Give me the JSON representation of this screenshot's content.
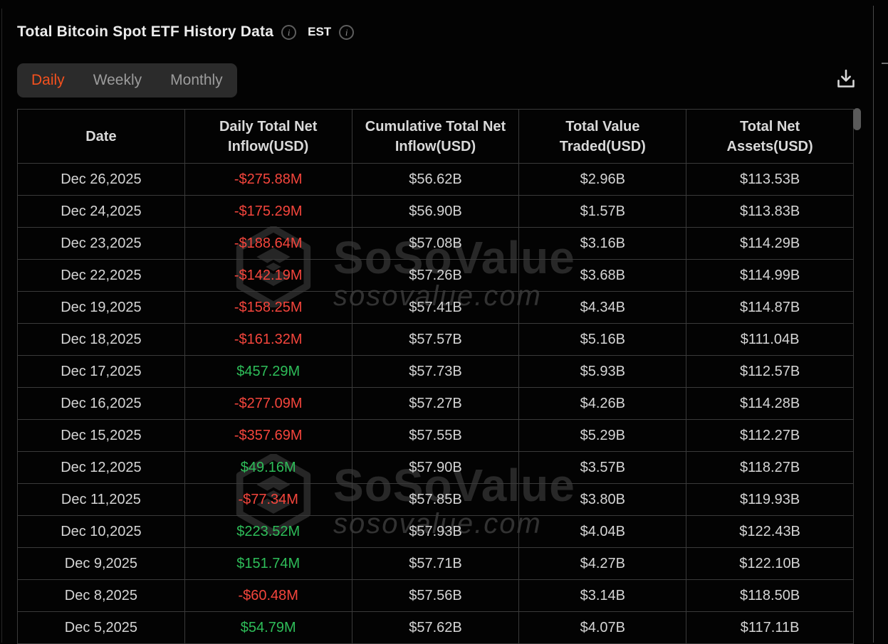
{
  "header": {
    "title": "Total Bitcoin Spot ETF History Data",
    "timezone_label": "EST"
  },
  "icons": {
    "info_glyph": "i",
    "download_icon_name": "download-tray-arrow"
  },
  "tabs": [
    {
      "label": "Daily",
      "active": true
    },
    {
      "label": "Weekly",
      "active": false
    },
    {
      "label": "Monthly",
      "active": false
    }
  ],
  "table": {
    "columns": [
      "Date",
      "Daily Total Net\nInflow(USD)",
      "Cumulative Total Net\nInflow(USD)",
      "Total Value\nTraded(USD)",
      "Total Net\nAssets(USD)"
    ],
    "rows": [
      {
        "date": "Dec 26,2025",
        "daily_net_inflow": "-$275.88M",
        "cumulative_net_inflow": "$56.62B",
        "value_traded": "$2.96B",
        "net_assets": "$113.53B"
      },
      {
        "date": "Dec 24,2025",
        "daily_net_inflow": "-$175.29M",
        "cumulative_net_inflow": "$56.90B",
        "value_traded": "$1.57B",
        "net_assets": "$113.83B"
      },
      {
        "date": "Dec 23,2025",
        "daily_net_inflow": "-$188.64M",
        "cumulative_net_inflow": "$57.08B",
        "value_traded": "$3.16B",
        "net_assets": "$114.29B"
      },
      {
        "date": "Dec 22,2025",
        "daily_net_inflow": "-$142.19M",
        "cumulative_net_inflow": "$57.26B",
        "value_traded": "$3.68B",
        "net_assets": "$114.99B"
      },
      {
        "date": "Dec 19,2025",
        "daily_net_inflow": "-$158.25M",
        "cumulative_net_inflow": "$57.41B",
        "value_traded": "$4.34B",
        "net_assets": "$114.87B"
      },
      {
        "date": "Dec 18,2025",
        "daily_net_inflow": "-$161.32M",
        "cumulative_net_inflow": "$57.57B",
        "value_traded": "$5.16B",
        "net_assets": "$111.04B"
      },
      {
        "date": "Dec 17,2025",
        "daily_net_inflow": "$457.29M",
        "cumulative_net_inflow": "$57.73B",
        "value_traded": "$5.93B",
        "net_assets": "$112.57B"
      },
      {
        "date": "Dec 16,2025",
        "daily_net_inflow": "-$277.09M",
        "cumulative_net_inflow": "$57.27B",
        "value_traded": "$4.26B",
        "net_assets": "$114.28B"
      },
      {
        "date": "Dec 15,2025",
        "daily_net_inflow": "-$357.69M",
        "cumulative_net_inflow": "$57.55B",
        "value_traded": "$5.29B",
        "net_assets": "$112.27B"
      },
      {
        "date": "Dec 12,2025",
        "daily_net_inflow": "$49.16M",
        "cumulative_net_inflow": "$57.90B",
        "value_traded": "$3.57B",
        "net_assets": "$118.27B"
      },
      {
        "date": "Dec 11,2025",
        "daily_net_inflow": "-$77.34M",
        "cumulative_net_inflow": "$57.85B",
        "value_traded": "$3.80B",
        "net_assets": "$119.93B"
      },
      {
        "date": "Dec 10,2025",
        "daily_net_inflow": "$223.52M",
        "cumulative_net_inflow": "$57.93B",
        "value_traded": "$4.04B",
        "net_assets": "$122.43B"
      },
      {
        "date": "Dec 9,2025",
        "daily_net_inflow": "$151.74M",
        "cumulative_net_inflow": "$57.71B",
        "value_traded": "$4.27B",
        "net_assets": "$122.10B"
      },
      {
        "date": "Dec 8,2025",
        "daily_net_inflow": "-$60.48M",
        "cumulative_net_inflow": "$57.56B",
        "value_traded": "$3.14B",
        "net_assets": "$118.50B"
      },
      {
        "date": "Dec 5,2025",
        "daily_net_inflow": "$54.79M",
        "cumulative_net_inflow": "$57.62B",
        "value_traded": "$4.07B",
        "net_assets": "$117.11B"
      }
    ]
  },
  "watermark": {
    "brand": "SoSoValue",
    "domain": "sosovalue.com"
  },
  "colors": {
    "negative": "#f4453c",
    "positive": "#2ebd59",
    "active_tab": "#f4511e",
    "inactive_tab": "#9c9c9c"
  }
}
